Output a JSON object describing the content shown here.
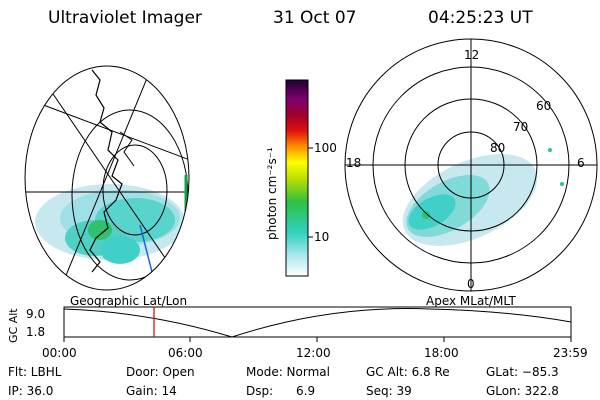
{
  "header": {
    "instrument": "Ultraviolet Imager",
    "date": "31 Oct 07",
    "time": "04:25:23 UT"
  },
  "colorbar": {
    "unit_label": "photon cm⁻²s⁻¹",
    "ticks": [
      "100",
      "10"
    ]
  },
  "geo_map": {
    "caption": "Geographic Lat/Lon"
  },
  "polar_map": {
    "caption": "Apex  MLat/MLT",
    "mlt_labels": [
      "12",
      "6",
      "0",
      "18"
    ],
    "mlat_labels": [
      "60",
      "70",
      "80"
    ]
  },
  "altitude_plot": {
    "ylabel": "GC Alt",
    "yticks": [
      "9.0",
      "1.8"
    ],
    "xticks": [
      "00:00",
      "06:00",
      "12:00",
      "18:00",
      "23:59"
    ],
    "marker_color": "#e00000"
  },
  "info": {
    "row1": {
      "filter": "Flt: LBHL",
      "door": "Door: Open",
      "mode": "Mode: Normal",
      "gc_alt": "GC Alt: 6.8 Re",
      "glat": "GLat: −85.3"
    },
    "row2": {
      "ip": "IP: 36.0",
      "gain": "Gain: 14",
      "dsp": "Dsp:      6.9",
      "seq": "Seq: 39",
      "glon": "GLon: 322.8"
    }
  },
  "colors": {
    "aurora_light": "#c8e8f0",
    "aurora_cyan": "#40d0c8",
    "aurora_green": "#30c070",
    "aurora_blue": "#2060d0"
  }
}
